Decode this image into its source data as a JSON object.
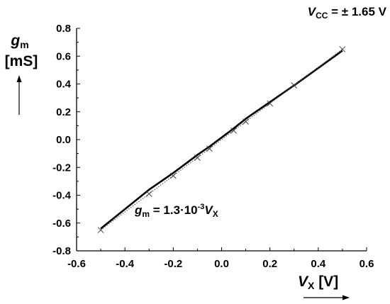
{
  "chart_data": {
    "type": "line",
    "title": "",
    "annotation_vcc": {
      "symbol": "V",
      "sub": "CC",
      "rest": " = ± 1.65 V"
    },
    "equation": {
      "g": "g",
      "gsub": "m",
      "mid": " = 1.3·10",
      "exp": "-3",
      "v": "V",
      "vsub": "X"
    },
    "ylabel": {
      "symbol": "g",
      "sub": "m",
      "unit": "[mS]"
    },
    "xlabel": {
      "symbol": "V",
      "sub": "X",
      "unit": " [V]"
    },
    "xlim": [
      -0.6,
      0.6
    ],
    "ylim": [
      -0.8,
      0.8
    ],
    "x_ticks": [
      -0.6,
      -0.4,
      -0.2,
      0.0,
      0.2,
      0.4,
      0.6
    ],
    "x_tick_labels": [
      "-0.6",
      "-0.4",
      "-0.2",
      "0.0",
      "0.2",
      "0.4",
      "0.6"
    ],
    "y_ticks": [
      -0.8,
      -0.6,
      -0.4,
      -0.2,
      0.0,
      0.2,
      0.4,
      0.6,
      0.8
    ],
    "y_tick_labels": [
      "-0.8",
      "-0.6",
      "-0.4",
      "-0.2",
      "0.0",
      "0.2",
      "0.4",
      "0.6",
      "0.8"
    ],
    "grid": false,
    "series": [
      {
        "style": "solid",
        "color": "#000000",
        "x": [
          -0.5,
          -0.3,
          -0.2,
          -0.1,
          -0.05,
          0.05,
          0.1,
          0.2,
          0.3,
          0.5
        ],
        "y": [
          -0.64,
          -0.36,
          -0.24,
          -0.11,
          -0.05,
          0.08,
          0.15,
          0.27,
          0.39,
          0.64
        ]
      },
      {
        "style": "dotted-with-x-markers",
        "color": "#555555",
        "x": [
          -0.5,
          -0.3,
          -0.2,
          -0.1,
          -0.05,
          0.05,
          0.1,
          0.2,
          0.3,
          0.5
        ],
        "y": [
          -0.65,
          -0.39,
          -0.26,
          -0.13,
          -0.065,
          0.065,
          0.13,
          0.26,
          0.39,
          0.65
        ]
      }
    ]
  }
}
